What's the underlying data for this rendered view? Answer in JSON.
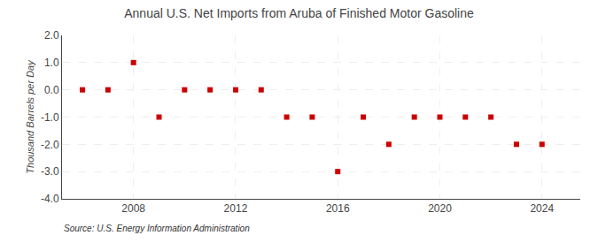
{
  "chart_data": {
    "type": "scatter",
    "title": "Annual U.S. Net Imports from Aruba of Finished Motor Gasoline",
    "y_label": "Thousand Barrels per Day",
    "annotations": [
      "Source: U.S. Energy Information Administration"
    ],
    "x": [
      2006,
      2007,
      2008,
      2009,
      2010,
      2011,
      2012,
      2013,
      2014,
      2015,
      2016,
      2017,
      2018,
      2019,
      2020,
      2021,
      2022,
      2023,
      2024
    ],
    "values": [
      0,
      0,
      1,
      -1,
      0,
      0,
      0,
      0,
      -1,
      -1,
      -3,
      -1,
      -2,
      -1,
      -1,
      -1,
      -1,
      -2,
      -2
    ],
    "color": "#cc0000",
    "marker": "square",
    "xlim": [
      2005.2,
      2025.5
    ],
    "xticks": [
      2008,
      2012,
      2016,
      2020,
      2024
    ],
    "ylim": [
      -4.0,
      2.0
    ],
    "yticks": [
      {
        "value": -4.0,
        "label": "-4.0"
      },
      {
        "value": -3.0,
        "label": "-3.0"
      },
      {
        "value": -2.0,
        "label": "-2.0"
      },
      {
        "value": -1.0,
        "label": "-1.0"
      },
      {
        "value": 0.0,
        "label": "0.0"
      },
      {
        "value": 1.0,
        "label": "1.0"
      },
      {
        "value": 2.0,
        "label": "2.0"
      }
    ],
    "grid": true
  }
}
